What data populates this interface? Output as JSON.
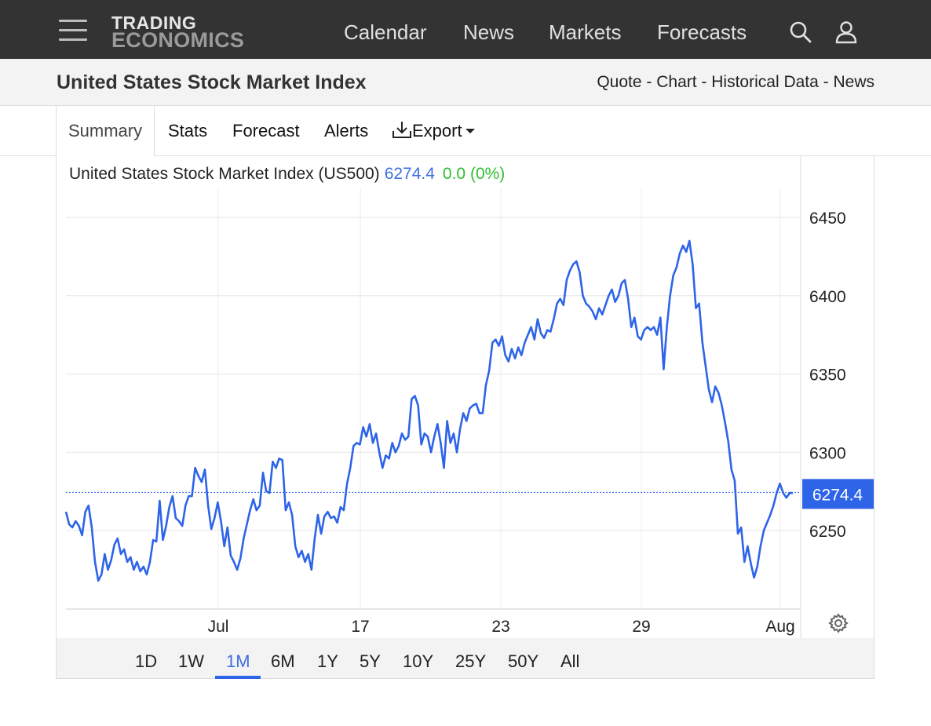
{
  "header": {
    "logo_line1": "TRADING",
    "logo_line2": "ECONOMICS",
    "nav": [
      "Calendar",
      "News",
      "Markets",
      "Forecasts"
    ]
  },
  "titlebar": {
    "title": "United States Stock Market Index",
    "links": [
      "Quote",
      "Chart",
      "Historical Data",
      "News"
    ],
    "separator": " - "
  },
  "tabs": {
    "summary": "Summary",
    "stats": "Stats",
    "forecast": "Forecast",
    "alerts": "Alerts",
    "export": "Export"
  },
  "quote": {
    "name": "United States Stock Market Index (US500)",
    "price": "6274.4",
    "change": "0.0 (0%)"
  },
  "ranges": [
    "1D",
    "1W",
    "1M",
    "6M",
    "1Y",
    "5Y",
    "10Y",
    "25Y",
    "50Y",
    "All"
  ],
  "active_range": "1M",
  "colors": {
    "line": "#2d64e8",
    "change_up": "#2fbf2f",
    "header_bg": "#333333"
  },
  "chart_data": {
    "type": "line",
    "x_tick_labels": [
      "Jul",
      "17",
      "23",
      "29",
      "Aug"
    ],
    "y_ticks": [
      6250,
      6300,
      6350,
      6400,
      6450
    ],
    "ylim": [
      6200,
      6475
    ],
    "last_value_label": "6274.4",
    "last_value": 6274.4,
    "grid": true,
    "series": [
      {
        "values": [
          6262,
          6254,
          6252,
          6256,
          6253,
          6247,
          6262,
          6266,
          6252,
          6230,
          6218,
          6222,
          6235,
          6225,
          6231,
          6241,
          6245,
          6235,
          6238,
          6230,
          6233,
          6225,
          6230,
          6224,
          6227,
          6222,
          6230,
          6244,
          6243,
          6269,
          6244,
          6253,
          6265,
          6272,
          6258,
          6256,
          6253,
          6266,
          6272,
          6272,
          6290,
          6285,
          6281,
          6289,
          6266,
          6251,
          6258,
          6268,
          6256,
          6240,
          6252,
          6234,
          6230,
          6225,
          6232,
          6245,
          6254,
          6263,
          6270,
          6263,
          6266,
          6287,
          6275,
          6274,
          6294,
          6290,
          6296,
          6295,
          6263,
          6268,
          6260,
          6240,
          6233,
          6237,
          6230,
          6235,
          6225,
          6245,
          6260,
          6248,
          6259,
          6262,
          6258,
          6259,
          6255,
          6265,
          6263,
          6280,
          6290,
          6304,
          6306,
          6305,
          6316,
          6310,
          6318,
          6306,
          6312,
          6300,
          6290,
          6298,
          6296,
          6306,
          6300,
          6304,
          6312,
          6308,
          6310,
          6334,
          6336,
          6330,
          6305,
          6312,
          6310,
          6300,
          6310,
          6318,
          6306,
          6290,
          6320,
          6306,
          6312,
          6300,
          6315,
          6325,
          6320,
          6328,
          6330,
          6331,
          6325,
          6325,
          6343,
          6352,
          6370,
          6372,
          6368,
          6374,
          6362,
          6358,
          6366,
          6360,
          6367,
          6362,
          6370,
          6375,
          6380,
          6372,
          6385,
          6376,
          6373,
          6378,
          6377,
          6385,
          6395,
          6398,
          6394,
          6410,
          6416,
          6420,
          6422,
          6415,
          6400,
          6395,
          6393,
          6390,
          6385,
          6392,
          6388,
          6394,
          6400,
          6404,
          6396,
          6400,
          6408,
          6410,
          6398,
          6380,
          6386,
          6374,
          6372,
          6378,
          6380,
          6378,
          6380,
          6375,
          6386,
          6353,
          6380,
          6400,
          6413,
          6418,
          6427,
          6432,
          6428,
          6435,
          6420,
          6392,
          6395,
          6370,
          6355,
          6340,
          6332,
          6342,
          6338,
          6330,
          6319,
          6307,
          6289,
          6282,
          6248,
          6252,
          6230,
          6240,
          6229,
          6220,
          6227,
          6240,
          6250,
          6255,
          6260,
          6266,
          6274,
          6280,
          6274,
          6271,
          6274,
          6274
        ]
      }
    ]
  }
}
